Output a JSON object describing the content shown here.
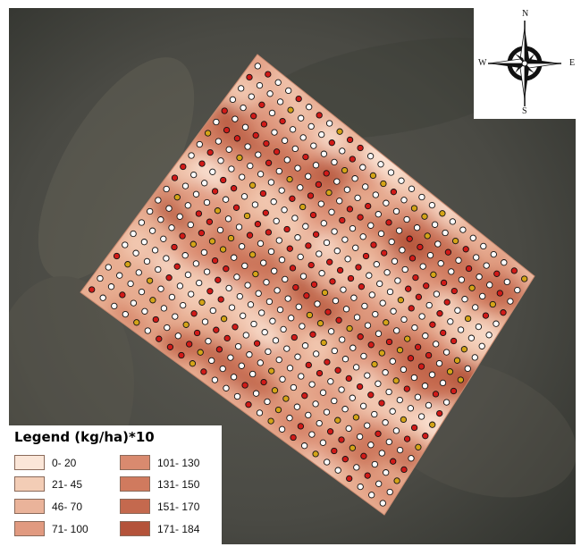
{
  "map": {
    "compass": {
      "north": "N",
      "south": "S",
      "west": "W",
      "east": "E"
    },
    "colors": {
      "background_dark": "#4a4a44",
      "field_low": "#fbe6d6",
      "field_high": "#b4533a",
      "point_red": "#d11a18",
      "point_yellow": "#d4a418",
      "point_white": "#ffffff"
    }
  },
  "legend": {
    "title": "Legend (kg/ha)*10",
    "items": [
      {
        "label": "0- 20",
        "color": "#fbe6d8"
      },
      {
        "label": "21- 45",
        "color": "#f3cdb6"
      },
      {
        "label": "46- 70",
        "color": "#eab39a"
      },
      {
        "label": "71- 100",
        "color": "#e19a80"
      },
      {
        "label": "101- 130",
        "color": "#d98a6f"
      },
      {
        "label": "131- 150",
        "color": "#d07a5e"
      },
      {
        "label": "151- 170",
        "color": "#c4694e"
      },
      {
        "label": "171- 184",
        "color": "#b4533a"
      }
    ]
  }
}
